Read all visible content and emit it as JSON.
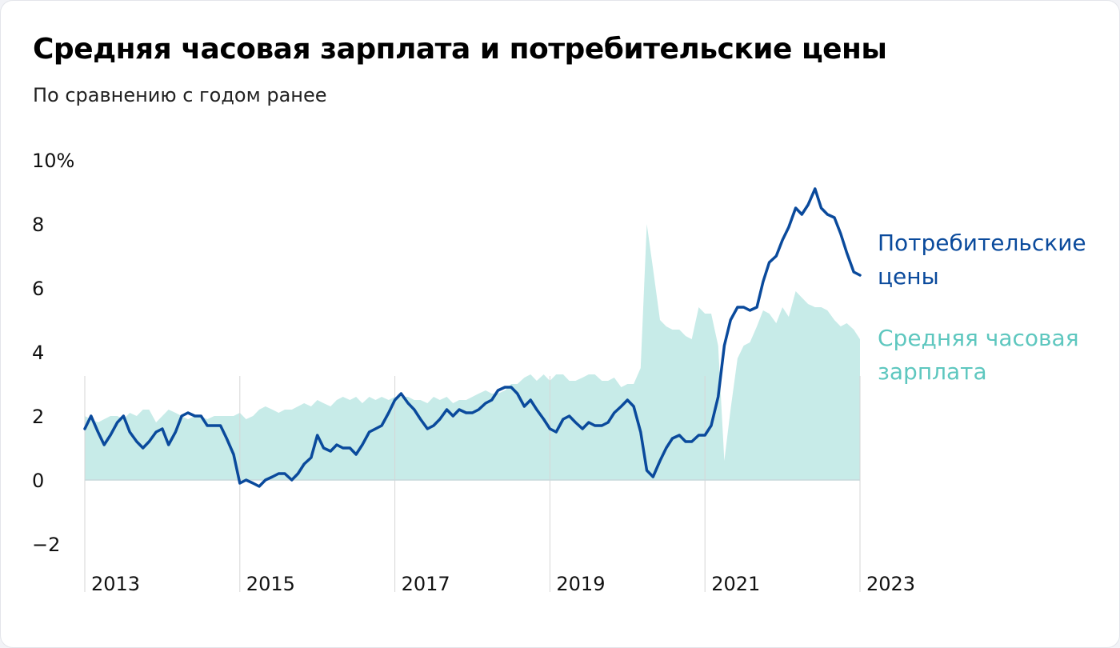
{
  "title": "Средняя часовая зарплата и потребительские цены",
  "subtitle": "По сравнению с годом ранее",
  "colors": {
    "cpi": "#0a4a9c",
    "wages_fill": "#c7ebe8",
    "wages_label": "#5ec7bf",
    "grid": "#d6d6d6",
    "zero": "#c7d8dc"
  },
  "chart_data": {
    "type": "area",
    "ylim": [
      -2,
      10
    ],
    "y_ticks": [
      {
        "value": 10,
        "label": "10%"
      },
      {
        "value": 8,
        "label": "8"
      },
      {
        "value": 6,
        "label": "6"
      },
      {
        "value": 4,
        "label": "4"
      },
      {
        "value": 2,
        "label": "2"
      },
      {
        "value": 0,
        "label": "0"
      },
      {
        "value": -2,
        "label": "−2"
      }
    ],
    "xlim": [
      2013.0,
      2023.0
    ],
    "x_ticks": [
      {
        "value": 2013,
        "label": "2013"
      },
      {
        "value": 2015,
        "label": "2015"
      },
      {
        "value": 2017,
        "label": "2017"
      },
      {
        "value": 2019,
        "label": "2019"
      },
      {
        "value": 2021,
        "label": "2021"
      },
      {
        "value": 2023,
        "label": "2023"
      }
    ],
    "series": [
      {
        "name": "Потребительские цены",
        "legend_lines": [
          "Потребительские",
          "цены"
        ],
        "style": "line",
        "points": [
          [
            2013.0,
            1.6
          ],
          [
            2013.08,
            2.0
          ],
          [
            2013.17,
            1.5
          ],
          [
            2013.25,
            1.1
          ],
          [
            2013.33,
            1.4
          ],
          [
            2013.42,
            1.8
          ],
          [
            2013.5,
            2.0
          ],
          [
            2013.58,
            1.5
          ],
          [
            2013.67,
            1.2
          ],
          [
            2013.75,
            1.0
          ],
          [
            2013.83,
            1.2
          ],
          [
            2013.92,
            1.5
          ],
          [
            2014.0,
            1.6
          ],
          [
            2014.08,
            1.1
          ],
          [
            2014.17,
            1.5
          ],
          [
            2014.25,
            2.0
          ],
          [
            2014.33,
            2.1
          ],
          [
            2014.42,
            2.0
          ],
          [
            2014.5,
            2.0
          ],
          [
            2014.58,
            1.7
          ],
          [
            2014.67,
            1.7
          ],
          [
            2014.75,
            1.7
          ],
          [
            2014.83,
            1.3
          ],
          [
            2014.92,
            0.8
          ],
          [
            2015.0,
            -0.1
          ],
          [
            2015.08,
            0.0
          ],
          [
            2015.17,
            -0.1
          ],
          [
            2015.25,
            -0.2
          ],
          [
            2015.33,
            0.0
          ],
          [
            2015.42,
            0.1
          ],
          [
            2015.5,
            0.2
          ],
          [
            2015.58,
            0.2
          ],
          [
            2015.67,
            0.0
          ],
          [
            2015.75,
            0.2
          ],
          [
            2015.83,
            0.5
          ],
          [
            2015.92,
            0.7
          ],
          [
            2016.0,
            1.4
          ],
          [
            2016.08,
            1.0
          ],
          [
            2016.17,
            0.9
          ],
          [
            2016.25,
            1.1
          ],
          [
            2016.33,
            1.0
          ],
          [
            2016.42,
            1.0
          ],
          [
            2016.5,
            0.8
          ],
          [
            2016.58,
            1.1
          ],
          [
            2016.67,
            1.5
          ],
          [
            2016.75,
            1.6
          ],
          [
            2016.83,
            1.7
          ],
          [
            2016.92,
            2.1
          ],
          [
            2017.0,
            2.5
          ],
          [
            2017.08,
            2.7
          ],
          [
            2017.17,
            2.4
          ],
          [
            2017.25,
            2.2
          ],
          [
            2017.33,
            1.9
          ],
          [
            2017.42,
            1.6
          ],
          [
            2017.5,
            1.7
          ],
          [
            2017.58,
            1.9
          ],
          [
            2017.67,
            2.2
          ],
          [
            2017.75,
            2.0
          ],
          [
            2017.83,
            2.2
          ],
          [
            2017.92,
            2.1
          ],
          [
            2018.0,
            2.1
          ],
          [
            2018.08,
            2.2
          ],
          [
            2018.17,
            2.4
          ],
          [
            2018.25,
            2.5
          ],
          [
            2018.33,
            2.8
          ],
          [
            2018.42,
            2.9
          ],
          [
            2018.5,
            2.9
          ],
          [
            2018.58,
            2.7
          ],
          [
            2018.67,
            2.3
          ],
          [
            2018.75,
            2.5
          ],
          [
            2018.83,
            2.2
          ],
          [
            2018.92,
            1.9
          ],
          [
            2019.0,
            1.6
          ],
          [
            2019.08,
            1.5
          ],
          [
            2019.17,
            1.9
          ],
          [
            2019.25,
            2.0
          ],
          [
            2019.33,
            1.8
          ],
          [
            2019.42,
            1.6
          ],
          [
            2019.5,
            1.8
          ],
          [
            2019.58,
            1.7
          ],
          [
            2019.67,
            1.7
          ],
          [
            2019.75,
            1.8
          ],
          [
            2019.83,
            2.1
          ],
          [
            2019.92,
            2.3
          ],
          [
            2020.0,
            2.5
          ],
          [
            2020.08,
            2.3
          ],
          [
            2020.17,
            1.5
          ],
          [
            2020.25,
            0.3
          ],
          [
            2020.33,
            0.1
          ],
          [
            2020.42,
            0.6
          ],
          [
            2020.5,
            1.0
          ],
          [
            2020.58,
            1.3
          ],
          [
            2020.67,
            1.4
          ],
          [
            2020.75,
            1.2
          ],
          [
            2020.83,
            1.2
          ],
          [
            2020.92,
            1.4
          ],
          [
            2021.0,
            1.4
          ],
          [
            2021.08,
            1.7
          ],
          [
            2021.17,
            2.6
          ],
          [
            2021.25,
            4.2
          ],
          [
            2021.33,
            5.0
          ],
          [
            2021.42,
            5.4
          ],
          [
            2021.5,
            5.4
          ],
          [
            2021.58,
            5.3
          ],
          [
            2021.67,
            5.4
          ],
          [
            2021.75,
            6.2
          ],
          [
            2021.83,
            6.8
          ],
          [
            2021.92,
            7.0
          ],
          [
            2022.0,
            7.5
          ],
          [
            2022.08,
            7.9
          ],
          [
            2022.17,
            8.5
          ],
          [
            2022.25,
            8.3
          ],
          [
            2022.33,
            8.6
          ],
          [
            2022.42,
            9.1
          ],
          [
            2022.5,
            8.5
          ],
          [
            2022.58,
            8.3
          ],
          [
            2022.67,
            8.2
          ],
          [
            2022.75,
            7.7
          ],
          [
            2022.83,
            7.1
          ],
          [
            2022.92,
            6.5
          ],
          [
            2023.0,
            6.4
          ]
        ]
      },
      {
        "name": "Средняя часовая зарплата",
        "legend_lines": [
          "Средняя часовая",
          "зарплата"
        ],
        "style": "area",
        "points": [
          [
            2013.0,
            2.0
          ],
          [
            2013.08,
            1.9
          ],
          [
            2013.17,
            1.8
          ],
          [
            2013.25,
            1.9
          ],
          [
            2013.33,
            2.0
          ],
          [
            2013.42,
            2.0
          ],
          [
            2013.5,
            1.9
          ],
          [
            2013.58,
            2.1
          ],
          [
            2013.67,
            2.0
          ],
          [
            2013.75,
            2.2
          ],
          [
            2013.83,
            2.2
          ],
          [
            2013.92,
            1.8
          ],
          [
            2014.0,
            2.0
          ],
          [
            2014.08,
            2.2
          ],
          [
            2014.17,
            2.1
          ],
          [
            2014.25,
            2.0
          ],
          [
            2014.33,
            1.9
          ],
          [
            2014.42,
            2.0
          ],
          [
            2014.5,
            2.0
          ],
          [
            2014.58,
            1.9
          ],
          [
            2014.67,
            2.0
          ],
          [
            2014.75,
            2.0
          ],
          [
            2014.83,
            2.0
          ],
          [
            2014.92,
            2.0
          ],
          [
            2015.0,
            2.1
          ],
          [
            2015.08,
            1.9
          ],
          [
            2015.17,
            2.0
          ],
          [
            2015.25,
            2.2
          ],
          [
            2015.33,
            2.3
          ],
          [
            2015.42,
            2.2
          ],
          [
            2015.5,
            2.1
          ],
          [
            2015.58,
            2.2
          ],
          [
            2015.67,
            2.2
          ],
          [
            2015.75,
            2.3
          ],
          [
            2015.83,
            2.4
          ],
          [
            2015.92,
            2.3
          ],
          [
            2016.0,
            2.5
          ],
          [
            2016.08,
            2.4
          ],
          [
            2016.17,
            2.3
          ],
          [
            2016.25,
            2.5
          ],
          [
            2016.33,
            2.6
          ],
          [
            2016.42,
            2.5
          ],
          [
            2016.5,
            2.6
          ],
          [
            2016.58,
            2.4
          ],
          [
            2016.67,
            2.6
          ],
          [
            2016.75,
            2.5
          ],
          [
            2016.83,
            2.6
          ],
          [
            2016.92,
            2.5
          ],
          [
            2017.0,
            2.6
          ],
          [
            2017.08,
            2.6
          ],
          [
            2017.17,
            2.6
          ],
          [
            2017.25,
            2.5
          ],
          [
            2017.33,
            2.5
          ],
          [
            2017.42,
            2.4
          ],
          [
            2017.5,
            2.6
          ],
          [
            2017.58,
            2.5
          ],
          [
            2017.67,
            2.6
          ],
          [
            2017.75,
            2.4
          ],
          [
            2017.83,
            2.5
          ],
          [
            2017.92,
            2.5
          ],
          [
            2018.0,
            2.6
          ],
          [
            2018.08,
            2.7
          ],
          [
            2018.17,
            2.8
          ],
          [
            2018.25,
            2.7
          ],
          [
            2018.33,
            2.7
          ],
          [
            2018.42,
            2.8
          ],
          [
            2018.5,
            3.0
          ],
          [
            2018.58,
            3.0
          ],
          [
            2018.67,
            3.2
          ],
          [
            2018.75,
            3.3
          ],
          [
            2018.83,
            3.1
          ],
          [
            2018.92,
            3.3
          ],
          [
            2019.0,
            3.1
          ],
          [
            2019.08,
            3.3
          ],
          [
            2019.17,
            3.3
          ],
          [
            2019.25,
            3.1
          ],
          [
            2019.33,
            3.1
          ],
          [
            2019.42,
            3.2
          ],
          [
            2019.5,
            3.3
          ],
          [
            2019.58,
            3.3
          ],
          [
            2019.67,
            3.1
          ],
          [
            2019.75,
            3.1
          ],
          [
            2019.83,
            3.2
          ],
          [
            2019.92,
            2.9
          ],
          [
            2020.0,
            3.0
          ],
          [
            2020.08,
            3.0
          ],
          [
            2020.17,
            3.5
          ],
          [
            2020.25,
            8.0
          ],
          [
            2020.33,
            6.6
          ],
          [
            2020.42,
            5.0
          ],
          [
            2020.5,
            4.8
          ],
          [
            2020.58,
            4.7
          ],
          [
            2020.67,
            4.7
          ],
          [
            2020.75,
            4.5
          ],
          [
            2020.83,
            4.4
          ],
          [
            2020.92,
            5.4
          ],
          [
            2021.0,
            5.2
          ],
          [
            2021.08,
            5.2
          ],
          [
            2021.17,
            4.2
          ],
          [
            2021.25,
            0.6
          ],
          [
            2021.33,
            2.2
          ],
          [
            2021.42,
            3.8
          ],
          [
            2021.5,
            4.2
          ],
          [
            2021.58,
            4.3
          ],
          [
            2021.67,
            4.8
          ],
          [
            2021.75,
            5.3
          ],
          [
            2021.83,
            5.2
          ],
          [
            2021.92,
            4.9
          ],
          [
            2022.0,
            5.4
          ],
          [
            2022.08,
            5.1
          ],
          [
            2022.17,
            5.9
          ],
          [
            2022.25,
            5.7
          ],
          [
            2022.33,
            5.5
          ],
          [
            2022.42,
            5.4
          ],
          [
            2022.5,
            5.4
          ],
          [
            2022.58,
            5.3
          ],
          [
            2022.67,
            5.0
          ],
          [
            2022.75,
            4.8
          ],
          [
            2022.83,
            4.9
          ],
          [
            2022.92,
            4.7
          ],
          [
            2023.0,
            4.4
          ]
        ]
      }
    ]
  }
}
